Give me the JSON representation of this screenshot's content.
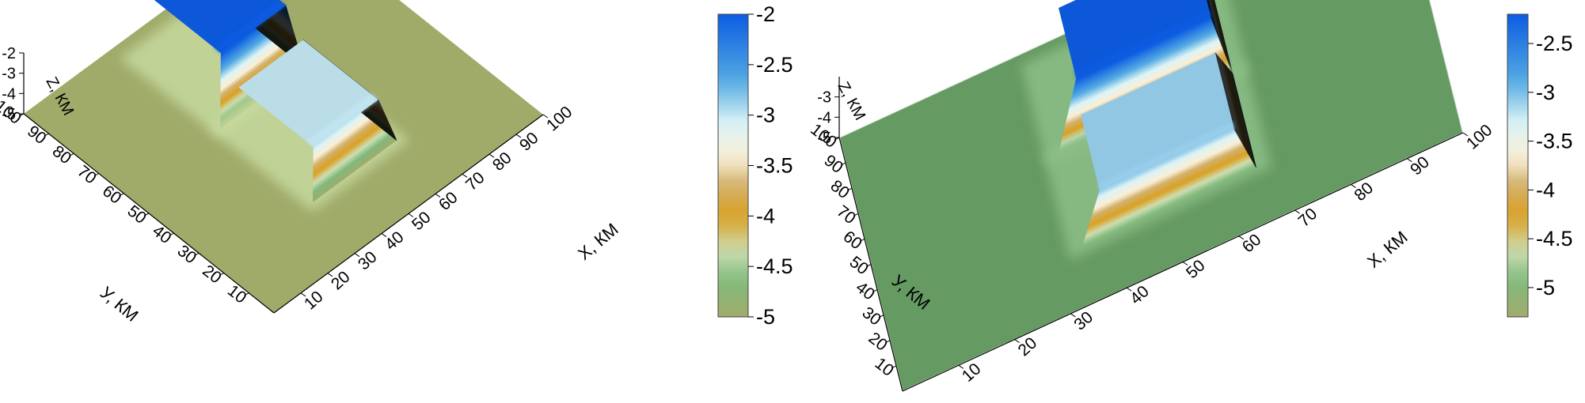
{
  "chart_data": [
    {
      "type": "surface",
      "axes": {
        "x": {
          "label": "X, КМ",
          "range": [
            0,
            100
          ],
          "ticks": [
            "10",
            "20",
            "30",
            "40",
            "50",
            "60",
            "70",
            "80",
            "90",
            "100"
          ]
        },
        "y": {
          "label": "У, КМ",
          "range": [
            0,
            100
          ],
          "ticks": [
            "10",
            "20",
            "30",
            "40",
            "50",
            "60",
            "70",
            "80",
            "90",
            "100"
          ]
        },
        "z": {
          "label": "Z, КМ",
          "range": [
            -5,
            -2
          ],
          "ticks": [
            "-2",
            "-3",
            "-4",
            "-5"
          ]
        }
      },
      "background_level": -5,
      "bodies": [
        {
          "x_range": [
            38,
            62
          ],
          "y_range": [
            62,
            90
          ],
          "top_z": -2.0
        },
        {
          "x_range": [
            38,
            62
          ],
          "y_range": [
            25,
            55
          ],
          "top_z": -3.0
        }
      ],
      "colorbar": {
        "min": -5,
        "max": -2,
        "labels": [
          "-2",
          "-2.5",
          "-3",
          "-3.5",
          "-4",
          "-4.5",
          "-5"
        ]
      },
      "grid": false
    },
    {
      "type": "surface",
      "axes": {
        "x": {
          "label": "X, КМ",
          "range": [
            0,
            100
          ],
          "ticks": [
            "10",
            "20",
            "30",
            "40",
            "50",
            "60",
            "70",
            "80",
            "90",
            "100"
          ]
        },
        "y": {
          "label": "У, КМ",
          "range": [
            0,
            100
          ],
          "ticks": [
            "10",
            "20",
            "30",
            "40",
            "50",
            "60",
            "70",
            "80",
            "90",
            "100"
          ]
        },
        "z": {
          "label": "Z, КМ",
          "range": [
            -5,
            -2
          ],
          "ticks": [
            "-3",
            "-4",
            "-5"
          ]
        }
      },
      "background_level": -4.9,
      "bodies": [
        {
          "x_range": [
            38,
            62
          ],
          "y_range": [
            62,
            90
          ],
          "top_z": -2.2
        },
        {
          "x_range": [
            38,
            62
          ],
          "y_range": [
            25,
            55
          ],
          "top_z": -3.1
        }
      ],
      "colorbar": {
        "min": -5.3,
        "max": -2.2,
        "labels": [
          "-2.5",
          "-3",
          "-3.5",
          "-4",
          "-4.5",
          "-5"
        ]
      },
      "grid": false
    }
  ]
}
